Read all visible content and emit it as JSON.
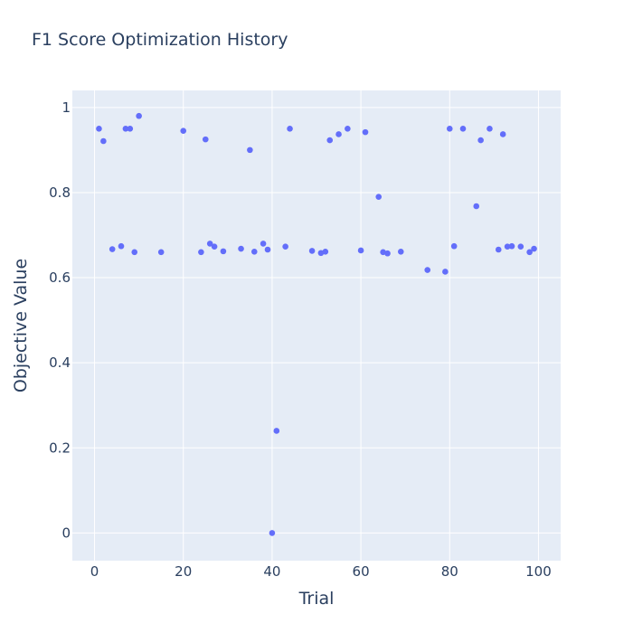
{
  "chart_data": {
    "type": "scatter",
    "title": "F1 Score Optimization History",
    "xlabel": "Trial",
    "ylabel": "Objective Value",
    "xlim": [
      -5,
      105
    ],
    "ylim": [
      -0.065,
      1.04
    ],
    "xticks": [
      0,
      20,
      40,
      60,
      80,
      100
    ],
    "yticks": [
      0,
      0.2,
      0.4,
      0.6,
      0.8,
      1
    ],
    "ytick_labels": [
      "0",
      "0.2",
      "0.4",
      "0.6",
      "0.8",
      "1"
    ],
    "grid": true,
    "marker_color": "#636efa",
    "plot_bg": "#e5ecf6",
    "series": [
      {
        "points": [
          [
            1,
            0.95
          ],
          [
            2,
            0.921
          ],
          [
            4,
            0.667
          ],
          [
            6,
            0.674
          ],
          [
            7,
            0.95
          ],
          [
            8,
            0.95
          ],
          [
            9,
            0.66
          ],
          [
            10,
            0.98
          ],
          [
            15,
            0.66
          ],
          [
            20,
            0.945
          ],
          [
            24,
            0.66
          ],
          [
            25,
            0.925
          ],
          [
            26,
            0.68
          ],
          [
            27,
            0.673
          ],
          [
            29,
            0.662
          ],
          [
            33,
            0.668
          ],
          [
            35,
            0.9
          ],
          [
            36,
            0.661
          ],
          [
            38,
            0.68
          ],
          [
            39,
            0.666
          ],
          [
            40,
            0.0
          ],
          [
            41,
            0.24
          ],
          [
            43,
            0.673
          ],
          [
            44,
            0.95
          ],
          [
            49,
            0.663
          ],
          [
            51,
            0.658
          ],
          [
            52,
            0.661
          ],
          [
            53,
            0.923
          ],
          [
            55,
            0.937
          ],
          [
            57,
            0.95
          ],
          [
            60,
            0.664
          ],
          [
            61,
            0.942
          ],
          [
            64,
            0.79
          ],
          [
            65,
            0.66
          ],
          [
            66,
            0.657
          ],
          [
            69,
            0.661
          ],
          [
            75,
            0.618
          ],
          [
            79,
            0.614
          ],
          [
            80,
            0.95
          ],
          [
            81,
            0.674
          ],
          [
            83,
            0.95
          ],
          [
            86,
            0.768
          ],
          [
            87,
            0.923
          ],
          [
            89,
            0.95
          ],
          [
            91,
            0.666
          ],
          [
            92,
            0.937
          ],
          [
            93,
            0.673
          ],
          [
            94,
            0.674
          ],
          [
            96,
            0.673
          ],
          [
            98,
            0.66
          ],
          [
            99,
            0.668
          ]
        ]
      }
    ]
  }
}
